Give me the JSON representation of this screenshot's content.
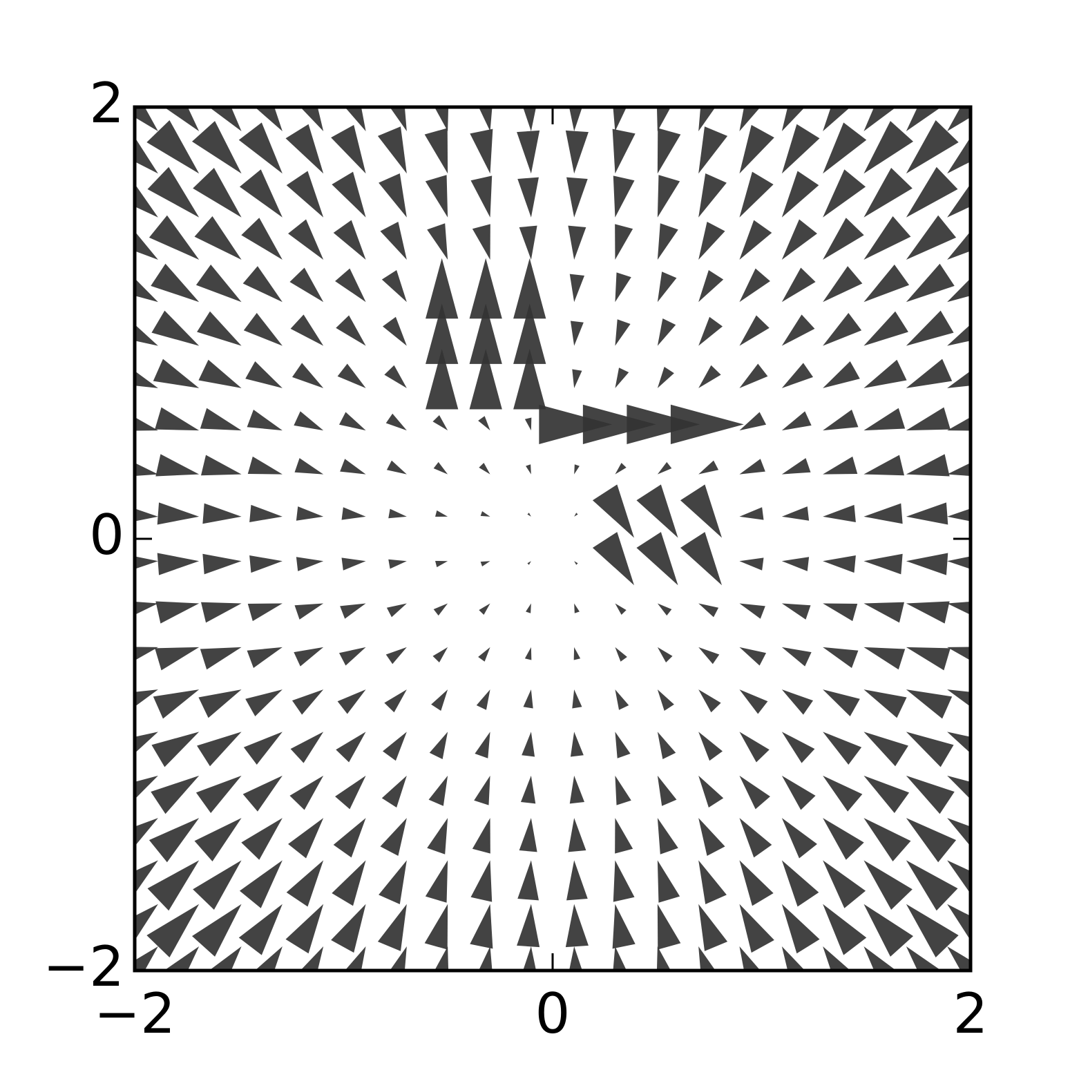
{
  "chart_data": {
    "type": "quiver",
    "x": [
      -2,
      -1.79,
      -1.58,
      -1.37,
      -1.16,
      -0.95,
      -0.74,
      -0.53,
      -0.32,
      -0.11,
      0.11,
      0.32,
      0.53,
      0.74,
      0.95,
      1.16,
      1.37,
      1.58,
      1.79,
      2
    ],
    "y": [
      -2,
      -1.79,
      -1.58,
      -1.37,
      -1.16,
      -0.95,
      -0.74,
      -0.53,
      -0.32,
      -0.11,
      0.11,
      0.32,
      0.53,
      0.74,
      0.95,
      1.16,
      1.37,
      1.58,
      1.79,
      2
    ],
    "u": [
      [
        0.16,
        0.14,
        0.13,
        0.11,
        0.09,
        0.08,
        0.06,
        0.04,
        0.03,
        0.01,
        -0.01,
        -0.03,
        -0.04,
        -0.06,
        -0.08,
        -0.09,
        -0.11,
        -0.13,
        -0.14,
        -0.16
      ],
      [
        0.16,
        0.14,
        0.13,
        0.11,
        0.09,
        0.08,
        0.06,
        0.04,
        0.03,
        0.01,
        -0.01,
        -0.03,
        -0.04,
        -0.06,
        -0.08,
        -0.09,
        -0.11,
        -0.13,
        -0.14,
        -0.16
      ],
      [
        0.16,
        0.14,
        0.13,
        0.11,
        0.09,
        0.08,
        0.06,
        0.04,
        0.03,
        0.01,
        -0.01,
        -0.03,
        -0.04,
        -0.06,
        -0.08,
        -0.09,
        -0.11,
        -0.13,
        -0.14,
        -0.16
      ],
      [
        0.16,
        0.14,
        0.13,
        0.11,
        0.09,
        0.08,
        0.06,
        0.04,
        0.03,
        0.01,
        -0.01,
        -0.03,
        -0.04,
        -0.06,
        -0.08,
        -0.09,
        -0.11,
        -0.13,
        -0.14,
        -0.16
      ],
      [
        0.16,
        0.14,
        0.13,
        0.11,
        0.09,
        0.08,
        0.06,
        0.04,
        0.03,
        0.01,
        -0.01,
        -0.03,
        -0.04,
        -0.06,
        -0.08,
        -0.09,
        -0.11,
        -0.13,
        -0.14,
        -0.16
      ],
      [
        0.16,
        0.14,
        0.13,
        0.11,
        0.09,
        0.08,
        0.06,
        0.04,
        0.03,
        0.01,
        -0.01,
        -0.03,
        -0.04,
        -0.06,
        -0.08,
        -0.09,
        -0.11,
        -0.13,
        -0.14,
        -0.16
      ],
      [
        0.16,
        0.14,
        0.13,
        0.11,
        0.09,
        0.08,
        0.06,
        0.04,
        0.03,
        0.01,
        -0.01,
        -0.03,
        -0.04,
        -0.06,
        -0.08,
        -0.09,
        -0.11,
        -0.13,
        -0.14,
        -0.16
      ],
      [
        0.16,
        0.14,
        0.13,
        0.11,
        0.09,
        0.08,
        0.06,
        0.04,
        0.03,
        0.01,
        -0.01,
        -0.03,
        -0.04,
        -0.06,
        -0.08,
        -0.09,
        -0.11,
        -0.13,
        -0.14,
        -0.16
      ],
      [
        0.16,
        0.14,
        0.13,
        0.11,
        0.09,
        0.08,
        0.06,
        0.04,
        0.03,
        0.01,
        -0.01,
        -0.03,
        -0.04,
        -0.06,
        -0.08,
        -0.09,
        -0.11,
        -0.13,
        -0.14,
        -0.16
      ],
      [
        0.16,
        0.14,
        0.13,
        0.11,
        0.09,
        0.08,
        0.06,
        0.04,
        0.03,
        0.01,
        -0.01,
        0.1,
        0.1,
        0.1,
        -0.08,
        -0.09,
        -0.11,
        -0.13,
        -0.14,
        -0.16
      ],
      [
        0.16,
        0.14,
        0.13,
        0.11,
        0.09,
        0.08,
        0.06,
        0.04,
        0.03,
        0.01,
        -0.01,
        0.1,
        0.1,
        0.1,
        -0.08,
        -0.09,
        -0.11,
        -0.13,
        -0.14,
        -0.16
      ],
      [
        0.16,
        0.14,
        0.13,
        0.11,
        0.09,
        0.08,
        0.06,
        0.04,
        0.03,
        0.01,
        -0.01,
        -0.03,
        -0.04,
        -0.06,
        -0.08,
        -0.09,
        -0.11,
        -0.13,
        -0.14,
        -0.16
      ],
      [
        0.16,
        0.14,
        0.13,
        0.11,
        0.09,
        0.08,
        0.06,
        0.04,
        0.03,
        0.01,
        0.25,
        0.25,
        0.25,
        0.25,
        -0.08,
        -0.09,
        -0.11,
        -0.13,
        -0.14,
        -0.16
      ],
      [
        0.16,
        0.14,
        0.13,
        0.11,
        0.09,
        0.08,
        0.06,
        0,
        0,
        0,
        -0.01,
        -0.03,
        -0.04,
        -0.06,
        -0.08,
        -0.09,
        -0.11,
        -0.13,
        -0.14,
        -0.16
      ],
      [
        0.16,
        0.14,
        0.13,
        0.11,
        0.09,
        0.08,
        0.06,
        0,
        0,
        0,
        -0.01,
        -0.03,
        -0.04,
        -0.06,
        -0.08,
        -0.09,
        -0.11,
        -0.13,
        -0.14,
        -0.16
      ],
      [
        0.16,
        0.14,
        0.13,
        0.11,
        0.09,
        0.08,
        0.06,
        0,
        0,
        0,
        -0.01,
        -0.03,
        -0.04,
        -0.06,
        -0.08,
        -0.09,
        -0.11,
        -0.13,
        -0.14,
        -0.16
      ],
      [
        0.16,
        0.14,
        0.13,
        0.11,
        0.09,
        0.08,
        0.06,
        0.04,
        0.03,
        0.01,
        -0.01,
        -0.03,
        -0.04,
        -0.06,
        -0.08,
        -0.09,
        -0.11,
        -0.13,
        -0.14,
        -0.16
      ],
      [
        0.16,
        0.14,
        0.13,
        0.11,
        0.09,
        0.08,
        0.06,
        0.04,
        0.03,
        0.01,
        -0.01,
        -0.03,
        -0.04,
        -0.06,
        -0.08,
        -0.09,
        -0.11,
        -0.13,
        -0.14,
        -0.16
      ],
      [
        0.16,
        0.14,
        0.13,
        0.11,
        0.09,
        0.08,
        0.06,
        0.04,
        0.03,
        0.01,
        -0.01,
        -0.03,
        -0.04,
        -0.06,
        -0.08,
        -0.09,
        -0.11,
        -0.13,
        -0.14,
        -0.16
      ],
      [
        0.16,
        0.14,
        0.13,
        0.11,
        0.09,
        0.08,
        0.06,
        0.04,
        0.03,
        0.01,
        -0.01,
        -0.03,
        -0.04,
        -0.06,
        -0.08,
        -0.09,
        -0.11,
        -0.13,
        -0.14,
        -0.16
      ]
    ],
    "v": [
      [
        0.16,
        0.16,
        0.16,
        0.16,
        0.16,
        0.16,
        0.16,
        0.16,
        0.16,
        0.16,
        0.16,
        0.16,
        0.16,
        0.16,
        0.16,
        0.16,
        0.16,
        0.16,
        0.16,
        0.16
      ],
      [
        0.14,
        0.14,
        0.14,
        0.14,
        0.14,
        0.14,
        0.14,
        0.14,
        0.14,
        0.14,
        0.14,
        0.14,
        0.14,
        0.14,
        0.14,
        0.14,
        0.14,
        0.14,
        0.14,
        0.14
      ],
      [
        0.13,
        0.13,
        0.13,
        0.13,
        0.13,
        0.13,
        0.13,
        0.13,
        0.13,
        0.13,
        0.13,
        0.13,
        0.13,
        0.13,
        0.13,
        0.13,
        0.13,
        0.13,
        0.13,
        0.13
      ],
      [
        0.11,
        0.11,
        0.11,
        0.11,
        0.11,
        0.11,
        0.11,
        0.11,
        0.11,
        0.11,
        0.11,
        0.11,
        0.11,
        0.11,
        0.11,
        0.11,
        0.11,
        0.11,
        0.11,
        0.11
      ],
      [
        0.09,
        0.09,
        0.09,
        0.09,
        0.09,
        0.09,
        0.09,
        0.09,
        0.09,
        0.09,
        0.09,
        0.09,
        0.09,
        0.09,
        0.09,
        0.09,
        0.09,
        0.09,
        0.09,
        0.09
      ],
      [
        0.08,
        0.08,
        0.08,
        0.08,
        0.08,
        0.08,
        0.08,
        0.08,
        0.08,
        0.08,
        0.08,
        0.08,
        0.08,
        0.08,
        0.08,
        0.08,
        0.08,
        0.08,
        0.08,
        0.08
      ],
      [
        0.06,
        0.06,
        0.06,
        0.06,
        0.06,
        0.06,
        0.06,
        0.06,
        0.06,
        0.06,
        0.06,
        0.06,
        0.06,
        0.06,
        0.06,
        0.06,
        0.06,
        0.06,
        0.06,
        0.06
      ],
      [
        0.04,
        0.04,
        0.04,
        0.04,
        0.04,
        0.04,
        0.04,
        0.04,
        0.04,
        0.04,
        0.04,
        0.04,
        0.04,
        0.04,
        0.04,
        0.04,
        0.04,
        0.04,
        0.04,
        0.04
      ],
      [
        0.03,
        0.03,
        0.03,
        0.03,
        0.03,
        0.03,
        0.03,
        0.03,
        0.03,
        0.03,
        0.03,
        0.03,
        0.03,
        0.03,
        0.03,
        0.03,
        0.03,
        0.03,
        0.03,
        0.03
      ],
      [
        0.01,
        0.01,
        0.01,
        0.01,
        0.01,
        0.01,
        0.01,
        0.01,
        0.01,
        0.01,
        0.01,
        -0.15,
        -0.15,
        -0.15,
        0.01,
        0.01,
        0.01,
        0.01,
        0.01,
        0.01
      ],
      [
        -0.01,
        -0.01,
        -0.01,
        -0.01,
        -0.01,
        -0.01,
        -0.01,
        -0.01,
        -0.01,
        -0.01,
        -0.01,
        -0.15,
        -0.15,
        -0.15,
        -0.01,
        -0.01,
        -0.01,
        -0.01,
        -0.01,
        -0.01
      ],
      [
        -0.03,
        -0.03,
        -0.03,
        -0.03,
        -0.03,
        -0.03,
        -0.03,
        -0.03,
        -0.03,
        -0.03,
        -0.03,
        -0.03,
        -0.03,
        -0.03,
        -0.03,
        -0.03,
        -0.03,
        -0.03,
        -0.03,
        -0.03
      ],
      [
        -0.04,
        -0.04,
        -0.04,
        -0.04,
        -0.04,
        -0.04,
        -0.04,
        -0.04,
        -0.04,
        -0.04,
        0,
        0,
        0,
        0,
        -0.04,
        -0.04,
        -0.04,
        -0.04,
        -0.04,
        -0.04
      ],
      [
        -0.06,
        -0.06,
        -0.06,
        -0.06,
        -0.06,
        -0.06,
        -0.06,
        0.2,
        0.2,
        0.2,
        -0.06,
        -0.06,
        -0.06,
        -0.06,
        -0.06,
        -0.06,
        -0.06,
        -0.06,
        -0.06,
        -0.06
      ],
      [
        -0.08,
        -0.08,
        -0.08,
        -0.08,
        -0.08,
        -0.08,
        -0.08,
        0.2,
        0.2,
        0.2,
        -0.08,
        -0.08,
        -0.08,
        -0.08,
        -0.08,
        -0.08,
        -0.08,
        -0.08,
        -0.08,
        -0.08
      ],
      [
        -0.09,
        -0.09,
        -0.09,
        -0.09,
        -0.09,
        -0.09,
        -0.09,
        0.2,
        0.2,
        0.2,
        -0.09,
        -0.09,
        -0.09,
        -0.09,
        -0.09,
        -0.09,
        -0.09,
        -0.09,
        -0.09,
        -0.09
      ],
      [
        -0.11,
        -0.11,
        -0.11,
        -0.11,
        -0.11,
        -0.11,
        -0.11,
        -0.11,
        -0.11,
        -0.11,
        -0.11,
        -0.11,
        -0.11,
        -0.11,
        -0.11,
        -0.11,
        -0.11,
        -0.11,
        -0.11,
        -0.11
      ],
      [
        -0.13,
        -0.13,
        -0.13,
        -0.13,
        -0.13,
        -0.13,
        -0.13,
        -0.13,
        -0.13,
        -0.13,
        -0.13,
        -0.13,
        -0.13,
        -0.13,
        -0.13,
        -0.13,
        -0.13,
        -0.13,
        -0.13,
        -0.13
      ],
      [
        -0.14,
        -0.14,
        -0.14,
        -0.14,
        -0.14,
        -0.14,
        -0.14,
        -0.14,
        -0.14,
        -0.14,
        -0.14,
        -0.14,
        -0.14,
        -0.14,
        -0.14,
        -0.14,
        -0.14,
        -0.14,
        -0.14,
        -0.14
      ],
      [
        -0.16,
        -0.16,
        -0.16,
        -0.16,
        -0.16,
        -0.16,
        -0.16,
        -0.16,
        -0.16,
        -0.16,
        -0.16,
        -0.16,
        -0.16,
        -0.16,
        -0.16,
        -0.16,
        -0.16,
        -0.16,
        -0.16,
        -0.16
      ]
    ],
    "color": "#333333",
    "xlim": [
      -2,
      2
    ],
    "ylim": [
      -2,
      2
    ],
    "xticks": [
      {
        "value": -2,
        "label": "−2"
      },
      0,
      2
    ],
    "yticks": [
      {
        "value": -2,
        "label": "−2"
      },
      0,
      2
    ]
  }
}
